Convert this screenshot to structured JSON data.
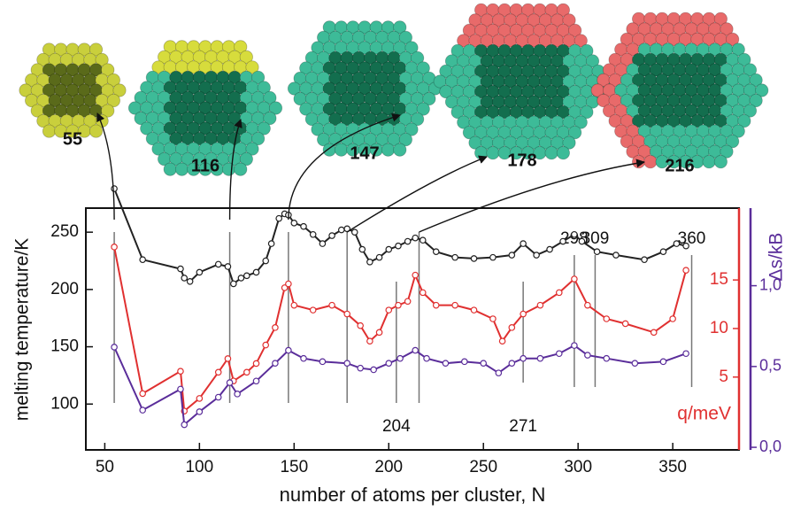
{
  "chart_data": {
    "type": "line",
    "x_label": "number of atoms per cluster, N",
    "y_label": "melting temperature/K",
    "y2_label": "q/meV",
    "y3_label": "Δs/kB",
    "xlim": [
      40,
      385
    ],
    "xticks": [
      50,
      100,
      150,
      200,
      250,
      300,
      350
    ],
    "ylim": [
      60,
      271
    ],
    "yticks": [
      100,
      150,
      200,
      250
    ],
    "y2lim": [
      -2.5,
      22.4
    ],
    "y2ticks": [
      5,
      10,
      15
    ],
    "y3lim": [
      -0.016,
      1.48
    ],
    "y3ticks": [
      {
        "value": 0,
        "label": "0,0"
      },
      {
        "value": 0.5,
        "label": "0,5"
      },
      {
        "value": 1,
        "label": "1,0"
      }
    ],
    "cluster_sizes": [
      55,
      116,
      147,
      178,
      216
    ],
    "marked_sizes": [
      204,
      271,
      298,
      309,
      360
    ],
    "series": [
      {
        "color": "#222222",
        "axis": "y",
        "x": [
          55,
          70,
          90,
          92,
          95,
          100,
          110,
          115,
          118,
          122,
          125,
          130,
          135,
          138,
          142,
          145,
          147,
          150,
          155,
          160,
          165,
          170,
          175,
          178,
          182,
          186,
          190,
          195,
          200,
          205,
          210,
          214,
          218,
          225,
          235,
          245,
          255,
          265,
          271,
          278,
          285,
          292,
          298,
          302,
          310,
          320,
          335,
          345,
          352,
          357
        ],
        "values": [
          288,
          226,
          218,
          210,
          207,
          215,
          222,
          220,
          205,
          210,
          212,
          215,
          225,
          240,
          262,
          266,
          265,
          258,
          255,
          248,
          240,
          247,
          252,
          253,
          250,
          235,
          224,
          228,
          235,
          238,
          242,
          245,
          243,
          233,
          228,
          227,
          228,
          230,
          240,
          230,
          235,
          242,
          248,
          242,
          233,
          230,
          226,
          233,
          240,
          238
        ]
      },
      {
        "color": "#e03030",
        "axis": "y2",
        "x": [
          55,
          70,
          90,
          92,
          100,
          110,
          115,
          118,
          125,
          130,
          135,
          140,
          145,
          147,
          150,
          160,
          170,
          178,
          185,
          190,
          195,
          200,
          205,
          210,
          214,
          218,
          225,
          235,
          245,
          255,
          260,
          265,
          271,
          280,
          290,
          298,
          305,
          315,
          325,
          340,
          350,
          357
        ],
        "values": [
          18.4,
          3.3,
          5.6,
          1.5,
          2.8,
          5.5,
          6.9,
          4.6,
          5.5,
          6.4,
          8.3,
          10.1,
          14.2,
          14.6,
          12.4,
          11.9,
          12.4,
          11.5,
          10.3,
          8.7,
          9.6,
          11.9,
          12.4,
          12.8,
          15.5,
          13.7,
          12.4,
          12.4,
          11.9,
          11,
          8.7,
          10.1,
          11.5,
          12.4,
          13.7,
          15.1,
          12.4,
          11,
          10.5,
          9.6,
          11,
          16
        ]
      },
      {
        "color": "#5a2d9a",
        "axis": "y3",
        "x": [
          55,
          70,
          90,
          92,
          100,
          110,
          116,
          120,
          130,
          140,
          147,
          155,
          165,
          178,
          185,
          192,
          200,
          206,
          214,
          220,
          230,
          240,
          250,
          258,
          265,
          271,
          280,
          290,
          298,
          305,
          315,
          330,
          345,
          357
        ],
        "values": [
          0.62,
          0.23,
          0.36,
          0.14,
          0.22,
          0.31,
          0.4,
          0.33,
          0.41,
          0.52,
          0.6,
          0.55,
          0.53,
          0.52,
          0.49,
          0.48,
          0.52,
          0.55,
          0.6,
          0.55,
          0.52,
          0.53,
          0.52,
          0.46,
          0.52,
          0.55,
          0.55,
          0.58,
          0.63,
          0.57,
          0.55,
          0.52,
          0.53,
          0.58
        ]
      }
    ]
  }
}
